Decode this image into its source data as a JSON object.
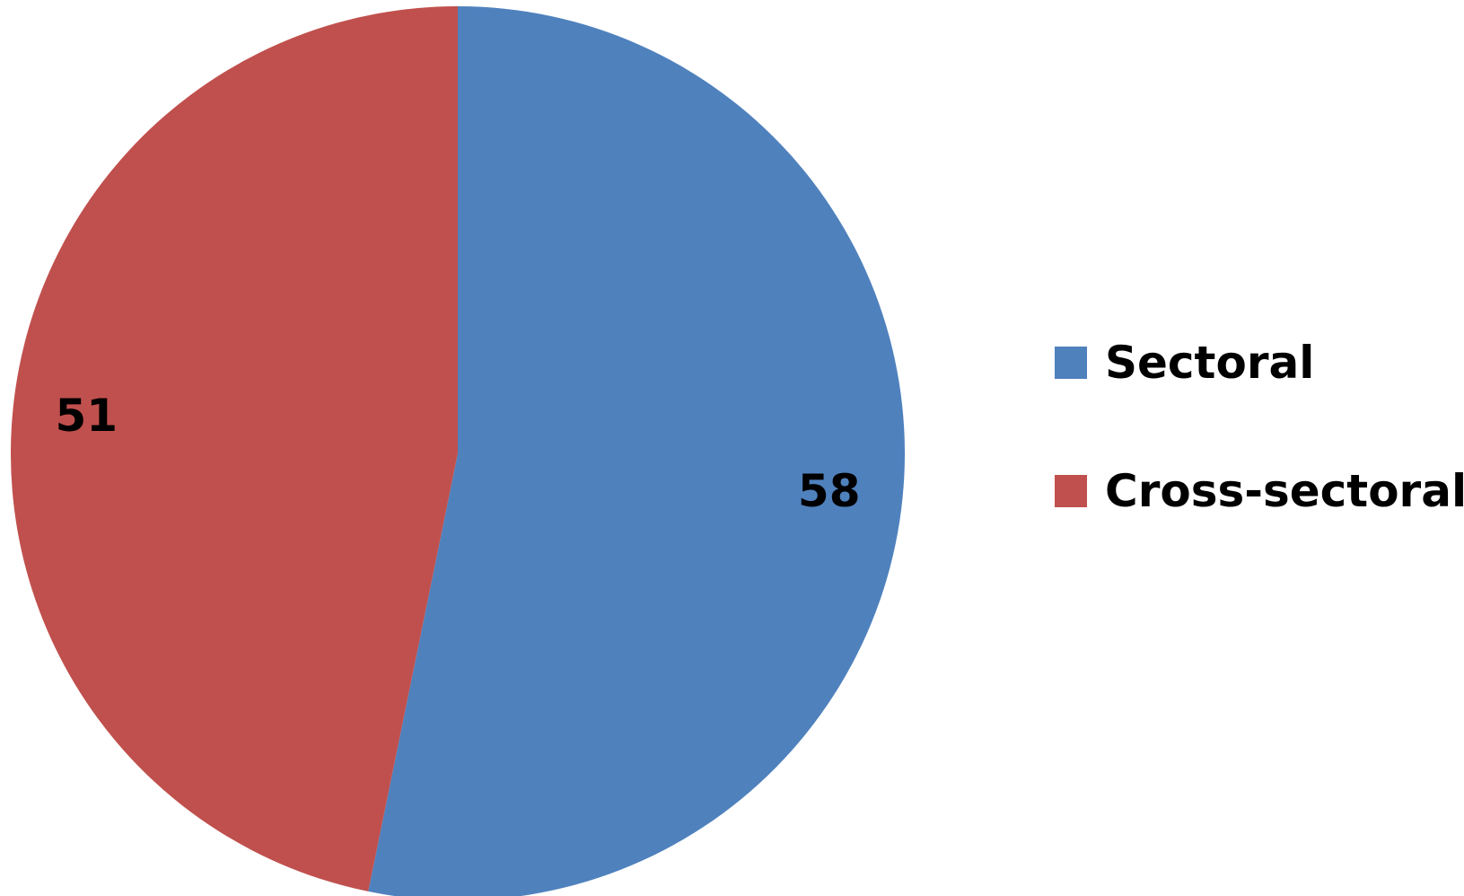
{
  "chart_data": {
    "type": "pie",
    "title": "",
    "start_angle_deg": 0,
    "direction": "clockwise",
    "legend_position": "right",
    "slices": [
      {
        "label": "Sectoral",
        "value": 58,
        "color": "#4F81BD"
      },
      {
        "label": "Cross-sectoral",
        "value": 51,
        "color": "#C0504D"
      }
    ]
  }
}
